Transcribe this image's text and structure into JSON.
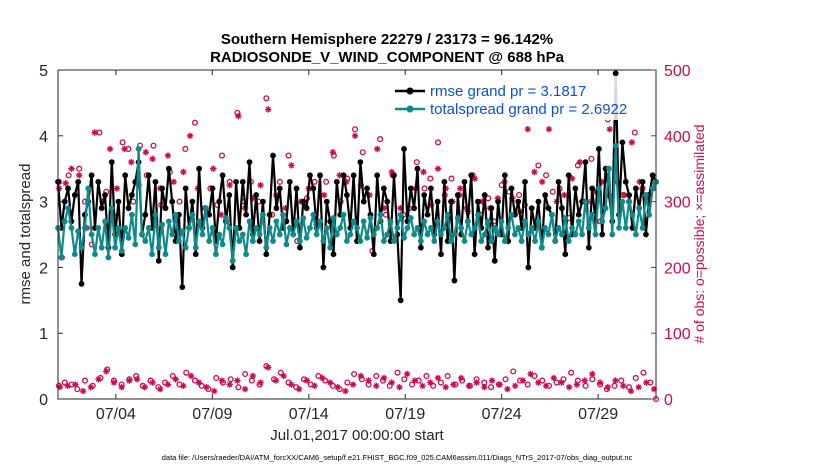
{
  "chart_data": {
    "type": "line",
    "title_line1": "Southern Hemisphere 22279 / 23173 = 96.142%",
    "title_line2": "RADIOSONDE_V_WIND_COMPONENT @ 688 hPa",
    "xlabel": "Jul.01,2017 00:00:00 start",
    "ylabel_left": "rmse and totalspread",
    "ylabel_right": "# of obs: o=possible; ×=assimilated",
    "footer": "data file: /Users/raeder/DAI/ATM_forcXX/CAM6_setup/f.e21.FHIST_BGC.f09_025.CAM6assim.011/Diags_NTrS_2017-07/obs_diag_output.nc",
    "x_day_range": [
      1.0,
      32.0
    ],
    "x_ticks": [
      {
        "day": 4,
        "label": "07/04"
      },
      {
        "day": 9,
        "label": "07/09"
      },
      {
        "day": 14,
        "label": "07/14"
      },
      {
        "day": 19,
        "label": "07/19"
      },
      {
        "day": 24,
        "label": "07/24"
      },
      {
        "day": 29,
        "label": "07/29"
      }
    ],
    "y_left": {
      "range": [
        0,
        5
      ],
      "ticks": [
        "0",
        "1",
        "2",
        "3",
        "4",
        "5"
      ]
    },
    "y_right": {
      "range": [
        0,
        500
      ],
      "ticks": [
        "0",
        "100",
        "200",
        "300",
        "400",
        "500"
      ]
    },
    "legend": [
      {
        "label": "rmse grand pr = 3.1817",
        "color": "#000000"
      },
      {
        "label": "totalspread grand pr = 2.6922",
        "color": "#0f8a8a"
      }
    ],
    "colors": {
      "rmse": "#000000",
      "spread": "#0f8a8a",
      "obs": "#cc0a52",
      "legend_text": "#0a50e0"
    },
    "rmse": [
      3.3,
      2.6,
      3.0,
      3.2,
      2.7,
      3.1,
      3.3,
      1.75,
      2.8,
      3.0,
      3.4,
      2.6,
      3.3,
      2.9,
      3.1,
      2.3,
      3.6,
      2.5,
      3.0,
      2.2,
      3.4,
      2.9,
      3.1,
      3.3,
      3.6,
      2.5,
      2.8,
      3.4,
      2.6,
      3.3,
      2.1,
      3.2,
      2.9,
      3.5,
      3.0,
      2.4,
      2.8,
      1.7,
      3.2,
      2.6,
      3.0,
      2.2,
      3.5,
      2.6,
      2.9,
      2.8,
      3.2,
      2.4,
      3.0,
      3.4,
      2.7,
      3.1,
      2.0,
      3.3,
      2.6,
      3.3,
      2.8,
      3.6,
      2.5,
      3.1,
      2.4,
      3.0,
      2.2,
      2.8,
      3.7,
      2.9,
      3.2,
      2.6,
      2.7,
      3.3,
      2.5,
      3.2,
      2.3,
      3.0,
      2.9,
      3.4,
      3.2,
      2.6,
      3.4,
      2.0,
      3.0,
      2.7,
      2.2,
      3.3,
      2.8,
      3.4,
      3.1,
      2.6,
      3.4,
      2.4,
      3.6,
      3.0,
      3.2,
      2.8,
      2.2,
      3.4,
      2.7,
      3.2,
      3.0,
      2.4,
      3.4,
      2.5,
      1.5,
      3.8,
      2.7,
      3.2,
      2.9,
      3.5,
      2.3,
      3.1,
      2.8,
      3.2,
      2.5,
      3.0,
      2.2,
      3.3,
      2.4,
      3.0,
      1.8,
      3.1,
      2.5,
      3.3,
      2.7,
      3.4,
      2.2,
      3.0,
      2.6,
      3.1,
      2.3,
      2.9,
      2.1,
      3.0,
      2.5,
      3.4,
      2.4,
      3.2,
      2.8,
      3.0,
      2.6,
      3.3,
      2.0,
      2.9,
      2.6,
      3.0,
      2.3,
      3.1,
      2.9,
      2.8,
      2.4,
      3.3,
      2.9,
      2.2,
      3.4,
      2.5,
      3.2,
      2.8,
      3.0,
      3.6,
      2.3,
      3.2,
      2.7,
      3.8,
      2.5,
      3.5,
      3.1,
      2.7,
      4.95,
      2.8,
      3.9,
      3.3,
      3.1,
      2.6,
      3.2,
      2.9,
      3.3,
      2.5,
      3.1,
      3.4,
      3.3
    ],
    "spread": [
      2.6,
      2.15,
      2.7,
      2.9,
      2.6,
      2.2,
      2.55,
      2.3,
      2.6,
      3.2,
      2.5,
      2.2,
      2.6,
      2.3,
      2.7,
      2.15,
      2.9,
      2.3,
      2.6,
      2.25,
      2.6,
      2.45,
      2.8,
      2.35,
      3.8,
      2.5,
      2.4,
      2.6,
      2.2,
      2.8,
      2.3,
      2.65,
      2.2,
      2.7,
      2.5,
      2.8,
      2.4,
      2.55,
      2.3,
      2.6,
      2.8,
      2.3,
      2.7,
      2.5,
      2.9,
      2.4,
      2.6,
      2.2,
      2.5,
      2.35,
      2.75,
      2.6,
      2.1,
      2.6,
      2.4,
      2.5,
      2.2,
      2.7,
      2.4,
      2.6,
      2.5,
      2.8,
      2.3,
      2.6,
      2.4,
      2.7,
      2.5,
      2.8,
      2.35,
      2.6,
      2.5,
      2.7,
      2.4,
      2.75,
      2.45,
      2.6,
      2.8,
      2.5,
      2.7,
      2.4,
      2.6,
      2.3,
      2.75,
      2.5,
      2.6,
      2.8,
      2.4,
      2.5,
      2.7,
      2.6,
      2.4,
      2.7,
      2.45,
      2.75,
      2.5,
      2.6,
      2.8,
      2.4,
      2.5,
      2.7,
      2.4,
      2.6,
      2.8,
      2.45,
      2.6,
      2.75,
      2.5,
      2.6,
      2.4,
      2.7,
      2.5,
      2.6,
      2.4,
      2.7,
      2.5,
      2.6,
      2.8,
      2.4,
      2.5,
      2.75,
      2.6,
      2.4,
      2.7,
      2.5,
      2.6,
      2.8,
      2.4,
      2.5,
      2.7,
      2.4,
      2.6,
      2.5,
      2.7,
      2.4,
      2.6,
      2.8,
      2.5,
      2.6,
      2.4,
      2.7,
      2.5,
      2.6,
      2.4,
      2.7,
      2.3,
      2.6,
      2.5,
      2.8,
      2.4,
      2.6,
      2.5,
      2.75,
      2.4,
      2.6,
      2.5,
      2.7,
      2.5,
      3.0,
      2.6,
      2.8,
      2.5,
      3.2,
      2.7,
      2.9,
      3.5,
      2.5,
      3.85,
      2.6,
      3.0,
      2.6,
      3.0,
      2.8,
      2.5,
      2.9,
      2.6,
      3.1,
      2.8,
      3.2,
      3.3
    ],
    "obs_possible": [
      [
        1.05,
        330
      ],
      [
        1.2,
        215
      ],
      [
        1.55,
        340
      ],
      [
        2.1,
        350
      ],
      [
        2.4,
        300
      ],
      [
        2.75,
        235
      ],
      [
        3.15,
        405
      ],
      [
        3.5,
        315
      ],
      [
        3.85,
        280
      ],
      [
        4.35,
        390
      ],
      [
        4.65,
        380
      ],
      [
        4.9,
        300
      ],
      [
        5.25,
        385
      ],
      [
        5.6,
        340
      ],
      [
        5.95,
        385
      ],
      [
        6.35,
        295
      ],
      [
        6.8,
        345
      ],
      [
        7.3,
        300
      ],
      [
        7.6,
        380
      ],
      [
        8.1,
        420
      ],
      [
        8.45,
        265
      ],
      [
        8.9,
        320
      ],
      [
        9.25,
        295
      ],
      [
        9.5,
        370
      ],
      [
        9.9,
        330
      ],
      [
        10.3,
        435
      ],
      [
        10.65,
        300
      ],
      [
        11.0,
        330
      ],
      [
        11.4,
        300
      ],
      [
        11.8,
        457
      ],
      [
        12.1,
        280
      ],
      [
        12.5,
        330
      ],
      [
        12.95,
        370
      ],
      [
        13.4,
        240
      ],
      [
        13.9,
        305
      ],
      [
        14.3,
        330
      ],
      [
        14.6,
        265
      ],
      [
        14.9,
        330
      ],
      [
        15.3,
        370
      ],
      [
        15.65,
        300
      ],
      [
        16.0,
        335
      ],
      [
        16.4,
        410
      ],
      [
        16.8,
        375
      ],
      [
        17.3,
        225
      ],
      [
        17.7,
        395
      ],
      [
        18.0,
        280
      ],
      [
        18.35,
        340
      ],
      [
        18.9,
        280
      ],
      [
        19.2,
        290
      ],
      [
        19.6,
        360
      ],
      [
        20.0,
        320
      ],
      [
        20.3,
        335
      ],
      [
        20.7,
        390
      ],
      [
        21.05,
        310
      ],
      [
        21.4,
        335
      ],
      [
        21.8,
        310
      ],
      [
        22.2,
        290
      ],
      [
        22.5,
        340
      ],
      [
        22.9,
        280
      ],
      [
        23.3,
        305
      ],
      [
        23.6,
        270
      ],
      [
        24.0,
        325
      ],
      [
        24.4,
        315
      ],
      [
        24.9,
        310
      ],
      [
        25.2,
        295
      ],
      [
        25.5,
        430
      ],
      [
        25.9,
        355
      ],
      [
        26.3,
        340
      ],
      [
        26.65,
        315
      ],
      [
        27.0,
        320
      ],
      [
        27.5,
        275
      ],
      [
        27.95,
        355
      ],
      [
        28.3,
        300
      ],
      [
        28.65,
        365
      ],
      [
        29.1,
        270
      ],
      [
        29.5,
        425
      ],
      [
        29.9,
        340
      ],
      [
        30.3,
        310
      ],
      [
        30.6,
        300
      ],
      [
        30.9,
        405
      ],
      [
        31.3,
        320
      ],
      [
        31.6,
        310
      ],
      [
        31.9,
        330
      ]
    ],
    "obs_assimilated": [
      [
        1.05,
        320
      ],
      [
        1.4,
        328
      ],
      [
        1.7,
        350
      ],
      [
        2.1,
        340
      ],
      [
        2.5,
        260
      ],
      [
        2.9,
        405
      ],
      [
        3.3,
        300
      ],
      [
        3.7,
        380
      ],
      [
        4.05,
        320
      ],
      [
        4.45,
        380
      ],
      [
        4.8,
        360
      ],
      [
        5.2,
        325
      ],
      [
        5.55,
        375
      ],
      [
        5.9,
        365
      ],
      [
        6.3,
        320
      ],
      [
        6.7,
        370
      ],
      [
        7.0,
        330
      ],
      [
        7.5,
        345
      ],
      [
        7.85,
        400
      ],
      [
        8.25,
        320
      ],
      [
        8.6,
        290
      ],
      [
        9.05,
        350
      ],
      [
        9.45,
        280
      ],
      [
        9.9,
        325
      ],
      [
        10.35,
        430
      ],
      [
        10.7,
        290
      ],
      [
        11.1,
        305
      ],
      [
        11.5,
        325
      ],
      [
        11.9,
        440
      ],
      [
        12.3,
        310
      ],
      [
        12.8,
        290
      ],
      [
        13.1,
        355
      ],
      [
        13.6,
        300
      ],
      [
        14.0,
        320
      ],
      [
        14.4,
        265
      ],
      [
        14.8,
        310
      ],
      [
        15.25,
        375
      ],
      [
        15.6,
        340
      ],
      [
        15.95,
        330
      ],
      [
        16.4,
        400
      ],
      [
        16.7,
        325
      ],
      [
        17.15,
        310
      ],
      [
        17.55,
        380
      ],
      [
        17.9,
        290
      ],
      [
        18.3,
        345
      ],
      [
        18.75,
        290
      ],
      [
        19.2,
        275
      ],
      [
        19.55,
        320
      ],
      [
        19.95,
        345
      ],
      [
        20.35,
        295
      ],
      [
        20.7,
        350
      ],
      [
        21.1,
        320
      ],
      [
        21.45,
        300
      ],
      [
        21.85,
        320
      ],
      [
        22.25,
        285
      ],
      [
        22.6,
        335
      ],
      [
        23.0,
        300
      ],
      [
        23.4,
        290
      ],
      [
        23.8,
        305
      ],
      [
        24.15,
        330
      ],
      [
        24.55,
        305
      ],
      [
        24.95,
        285
      ],
      [
        25.35,
        410
      ],
      [
        25.7,
        345
      ],
      [
        26.1,
        330
      ],
      [
        26.45,
        410
      ],
      [
        26.85,
        300
      ],
      [
        27.25,
        310
      ],
      [
        27.65,
        335
      ],
      [
        28.05,
        360
      ],
      [
        28.45,
        300
      ],
      [
        28.85,
        315
      ],
      [
        29.2,
        330
      ],
      [
        29.6,
        410
      ],
      [
        29.95,
        330
      ],
      [
        30.35,
        310
      ],
      [
        30.75,
        390
      ],
      [
        31.15,
        330
      ],
      [
        31.5,
        305
      ],
      [
        31.85,
        320
      ]
    ],
    "obs_low_possible": [
      [
        1.05,
        20
      ],
      [
        1.35,
        25
      ],
      [
        1.7,
        22
      ],
      [
        2.0,
        15
      ],
      [
        2.4,
        28
      ],
      [
        2.8,
        20
      ],
      [
        3.2,
        32
      ],
      [
        3.55,
        45
      ],
      [
        3.9,
        28
      ],
      [
        4.3,
        22
      ],
      [
        4.7,
        30
      ],
      [
        5.05,
        35
      ],
      [
        5.4,
        20
      ],
      [
        5.8,
        28
      ],
      [
        6.2,
        18
      ],
      [
        6.55,
        25
      ],
      [
        6.95,
        35
      ],
      [
        7.3,
        22
      ],
      [
        7.65,
        40
      ],
      [
        8.1,
        28
      ],
      [
        8.45,
        20
      ],
      [
        8.8,
        15
      ],
      [
        9.2,
        32
      ],
      [
        9.55,
        25
      ],
      [
        9.95,
        30
      ],
      [
        10.35,
        18
      ],
      [
        10.7,
        38
      ],
      [
        11.05,
        28
      ],
      [
        11.45,
        22
      ],
      [
        11.8,
        50
      ],
      [
        12.2,
        30
      ],
      [
        12.55,
        40
      ],
      [
        12.95,
        25
      ],
      [
        13.35,
        18
      ],
      [
        13.75,
        30
      ],
      [
        14.1,
        22
      ],
      [
        14.5,
        35
      ],
      [
        14.85,
        28
      ],
      [
        15.25,
        20
      ],
      [
        15.6,
        15
      ],
      [
        16.0,
        25
      ],
      [
        16.35,
        38
      ],
      [
        16.75,
        30
      ],
      [
        17.1,
        22
      ],
      [
        17.5,
        35
      ],
      [
        17.85,
        28
      ],
      [
        18.2,
        20
      ],
      [
        18.6,
        40
      ],
      [
        18.95,
        30
      ],
      [
        19.35,
        22
      ],
      [
        19.7,
        28
      ],
      [
        20.1,
        35
      ],
      [
        20.45,
        20
      ],
      [
        20.85,
        25
      ],
      [
        21.2,
        35
      ],
      [
        21.6,
        22
      ],
      [
        21.95,
        28
      ],
      [
        22.35,
        20
      ],
      [
        22.7,
        30
      ],
      [
        23.1,
        25
      ],
      [
        23.45,
        18
      ],
      [
        23.85,
        22
      ],
      [
        24.2,
        30
      ],
      [
        24.6,
        42
      ],
      [
        24.95,
        28
      ],
      [
        25.35,
        22
      ],
      [
        25.7,
        35
      ],
      [
        26.1,
        28
      ],
      [
        26.45,
        20
      ],
      [
        26.85,
        25
      ],
      [
        27.2,
        30
      ],
      [
        27.6,
        40
      ],
      [
        27.95,
        28
      ],
      [
        28.35,
        20
      ],
      [
        28.7,
        30
      ],
      [
        29.1,
        22
      ],
      [
        29.45,
        15
      ],
      [
        29.85,
        20
      ],
      [
        30.2,
        28
      ],
      [
        30.6,
        18
      ],
      [
        30.95,
        32
      ],
      [
        31.35,
        40
      ],
      [
        31.7,
        25
      ],
      [
        32.0,
        0
      ]
    ],
    "obs_low_assimilated": [
      [
        1.1,
        18
      ],
      [
        1.5,
        20
      ],
      [
        1.9,
        22
      ],
      [
        2.3,
        12
      ],
      [
        2.7,
        18
      ],
      [
        3.1,
        30
      ],
      [
        3.5,
        42
      ],
      [
        3.9,
        25
      ],
      [
        4.3,
        18
      ],
      [
        4.7,
        28
      ],
      [
        5.1,
        30
      ],
      [
        5.5,
        18
      ],
      [
        5.9,
        25
      ],
      [
        6.3,
        15
      ],
      [
        6.7,
        22
      ],
      [
        7.1,
        30
      ],
      [
        7.5,
        20
      ],
      [
        7.9,
        35
      ],
      [
        8.3,
        25
      ],
      [
        8.7,
        18
      ],
      [
        9.1,
        12
      ],
      [
        9.5,
        28
      ],
      [
        9.9,
        22
      ],
      [
        10.3,
        28
      ],
      [
        10.7,
        15
      ],
      [
        11.1,
        35
      ],
      [
        11.5,
        25
      ],
      [
        11.9,
        48
      ],
      [
        12.3,
        28
      ],
      [
        12.7,
        35
      ],
      [
        13.1,
        22
      ],
      [
        13.5,
        15
      ],
      [
        13.9,
        28
      ],
      [
        14.3,
        20
      ],
      [
        14.7,
        32
      ],
      [
        15.1,
        25
      ],
      [
        15.5,
        18
      ],
      [
        15.9,
        12
      ],
      [
        16.3,
        22
      ],
      [
        16.7,
        35
      ],
      [
        17.1,
        28
      ],
      [
        17.5,
        20
      ],
      [
        17.9,
        32
      ],
      [
        18.3,
        25
      ],
      [
        18.7,
        18
      ],
      [
        19.1,
        38
      ],
      [
        19.5,
        28
      ],
      [
        19.9,
        20
      ],
      [
        20.3,
        25
      ],
      [
        20.7,
        32
      ],
      [
        21.1,
        18
      ],
      [
        21.5,
        22
      ],
      [
        21.9,
        32
      ],
      [
        22.3,
        20
      ],
      [
        22.7,
        25
      ],
      [
        23.1,
        18
      ],
      [
        23.5,
        28
      ],
      [
        23.9,
        22
      ],
      [
        24.3,
        15
      ],
      [
        24.7,
        20
      ],
      [
        25.1,
        28
      ],
      [
        25.5,
        38
      ],
      [
        25.9,
        25
      ],
      [
        26.3,
        20
      ],
      [
        26.7,
        32
      ],
      [
        27.1,
        25
      ],
      [
        27.5,
        18
      ],
      [
        27.9,
        22
      ],
      [
        28.3,
        28
      ],
      [
        28.7,
        38
      ],
      [
        29.1,
        25
      ],
      [
        29.5,
        18
      ],
      [
        29.9,
        28
      ],
      [
        30.3,
        20
      ],
      [
        30.7,
        12
      ],
      [
        31.1,
        18
      ],
      [
        31.5,
        25
      ],
      [
        31.9,
        15
      ]
    ]
  }
}
